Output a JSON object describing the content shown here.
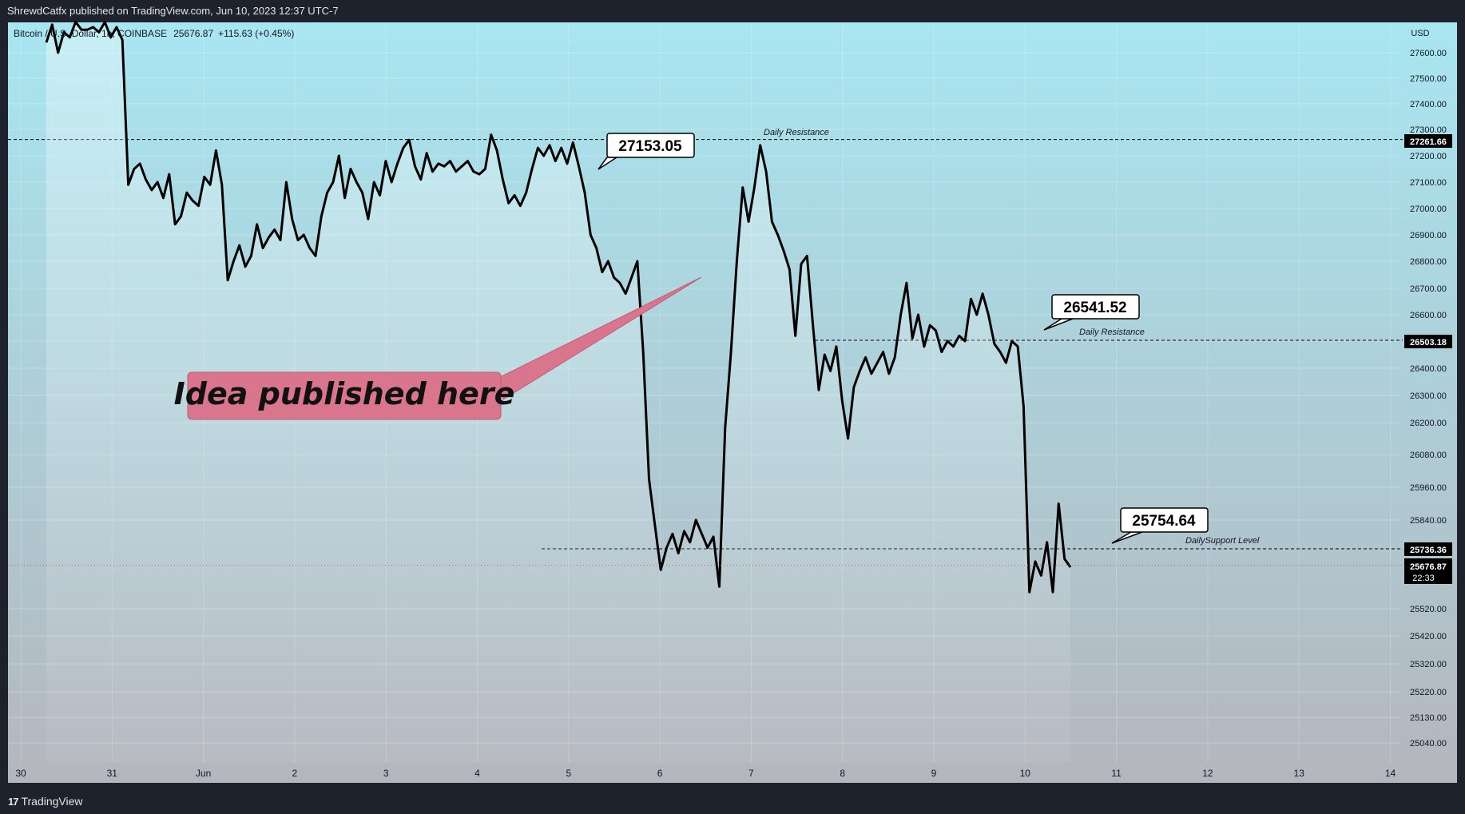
{
  "header": {
    "text": "ShrewdCatfx published on TradingView.com, Jun 10, 2023 12:37 UTC-7"
  },
  "footer": {
    "logo_mark": "17",
    "brand": "TradingView"
  },
  "chart_data": {
    "type": "line",
    "symbol_info": "Bitcoin / U.S. Dollar, 1h, COINBASE",
    "last_price": "25676.87",
    "change": "+115.63 (+0.45%)",
    "currency": "USD",
    "countdown": "22:33",
    "x_tick_labels": [
      "30",
      "31",
      "Jun",
      "2",
      "3",
      "4",
      "5",
      "6",
      "7",
      "8",
      "9",
      "10",
      "11",
      "12",
      "13",
      "14"
    ],
    "y_tick_labels": [
      "27600.00",
      "27500.00",
      "27400.00",
      "27300.00",
      "27200.00",
      "27100.00",
      "27000.00",
      "26900.00",
      "26800.00",
      "26700.00",
      "26600.00",
      "26500.00",
      "26400.00",
      "26300.00",
      "26200.00",
      "26080.00",
      "25960.00",
      "25840.00",
      "25520.00",
      "25420.00",
      "25320.00",
      "25220.00",
      "25130.00",
      "25040.00"
    ],
    "series": [
      {
        "values": [
          27640,
          27710,
          27600,
          27680,
          27660,
          27720,
          27690,
          27690,
          27700,
          27680,
          27720,
          27660,
          27700,
          27650,
          27090,
          27150,
          27170,
          27110,
          27070,
          27100,
          27040,
          27130,
          26940,
          26970,
          27060,
          27030,
          27010,
          27120,
          27090,
          27220,
          27090,
          26730,
          26800,
          26860,
          26780,
          26820,
          26940,
          26850,
          26890,
          26920,
          26880,
          27100,
          26960,
          26880,
          26900,
          26850,
          26820,
          26970,
          27060,
          27100,
          27200,
          27040,
          27150,
          27100,
          27060,
          26960,
          27100,
          27050,
          27180,
          27100,
          27170,
          27230,
          27260,
          27160,
          27110,
          27210,
          27140,
          27170,
          27160,
          27180,
          27140,
          27160,
          27180,
          27140,
          27130,
          27150,
          27280,
          27220,
          27110,
          27020,
          27050,
          27010,
          27060,
          27150,
          27230,
          27200,
          27240,
          27180,
          27230,
          27170,
          27250,
          27160,
          27060,
          26900,
          26850,
          26760,
          26800,
          26740,
          26720,
          26680,
          26740,
          26800,
          26460,
          25990,
          25820,
          25660,
          25740,
          25790,
          25720,
          25800,
          25760,
          25840,
          25790,
          25740,
          25780,
          25600,
          26180,
          26460,
          26800,
          27080,
          26950,
          27080,
          27240,
          27140,
          26950,
          26900,
          26840,
          26770,
          26520,
          26790,
          26820,
          26560,
          26320,
          26450,
          26390,
          26480,
          26280,
          26140,
          26330,
          26390,
          26440,
          26380,
          26420,
          26460,
          26380,
          26440,
          26600,
          26720,
          26510,
          26600,
          26480,
          26560,
          26540,
          26460,
          26500,
          26480,
          26520,
          26500,
          26660,
          26600,
          26680,
          26600,
          26490,
          26460,
          26420,
          26500,
          26480,
          26260,
          25580,
          25690,
          25640,
          25760,
          25580,
          25900,
          25700,
          25670
        ]
      }
    ],
    "lines": [
      {
        "price": "27261.66",
        "label": "Daily Resistance",
        "color": "#000000"
      },
      {
        "price": "26503.18",
        "label": "Daily Resistance",
        "color": "#000000"
      },
      {
        "price": "25736.36",
        "label": "DailySupport Level",
        "color": "#000000"
      }
    ],
    "callouts": [
      "27153.05",
      "26541.52",
      "25754.64"
    ],
    "note": "Idea published here",
    "colors": {
      "line": "#000000",
      "note_bg": "#d9758c",
      "note_text": "#111111",
      "bg_top": "#a8e6f1",
      "bg_bottom": "#b4b6bd",
      "frame": "#1e222d"
    }
  }
}
